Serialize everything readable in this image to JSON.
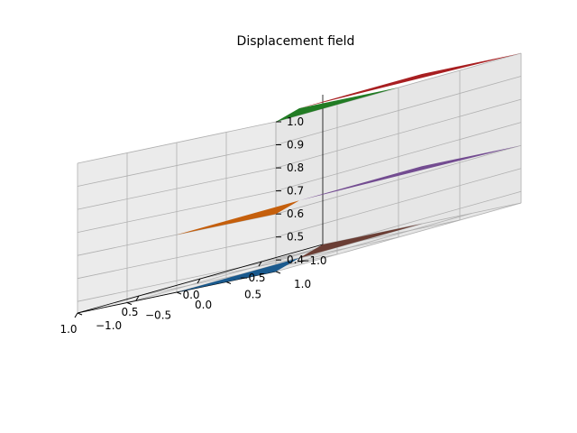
{
  "chart_data": {
    "type": "3d-surface",
    "title": "Displacement field",
    "xlim": [
      -1.0,
      1.0
    ],
    "ylim": [
      -1.0,
      1.0
    ],
    "zlim": [
      0.4,
      1.0
    ],
    "x_ticks": [
      "−1.0",
      "−0.5",
      "0.0",
      "0.5",
      "1.0"
    ],
    "x_tick_values": [
      -1.0,
      -0.5,
      0.0,
      0.5,
      1.0
    ],
    "y_ticks": [
      "−1.0",
      "−0.5",
      "0.0",
      "0.5",
      "1.0"
    ],
    "y_tick_values": [
      -1.0,
      -0.5,
      0.0,
      0.5,
      1.0
    ],
    "z_ticks": [
      "0.4",
      "0.5",
      "0.6",
      "0.7",
      "0.8",
      "0.9",
      "1.0"
    ],
    "z_tick_values": [
      0.4,
      0.5,
      0.6,
      0.7,
      0.8,
      0.9,
      1.0
    ],
    "grid": true,
    "triangles": [
      {
        "color": "#1a5a8e",
        "vertices": [
          [
            0,
            0,
            0.35
          ],
          [
            1,
            1,
            0.35
          ],
          [
            1,
            0,
            0.35
          ]
        ]
      },
      {
        "color": "#6b3e35",
        "vertices": [
          [
            0,
            0,
            0.35
          ],
          [
            -1,
            -1,
            0.35
          ],
          [
            -1,
            0,
            0.35
          ]
        ]
      },
      {
        "color": "#734c91",
        "vertices": [
          [
            0,
            0,
            0.6
          ],
          [
            -1,
            0,
            0.6
          ],
          [
            -1,
            1,
            0.6
          ]
        ]
      },
      {
        "color": "#c55f0c",
        "vertices": [
          [
            0,
            0,
            0.6
          ],
          [
            1,
            0,
            0.6
          ],
          [
            1,
            1,
            0.6
          ]
        ]
      },
      {
        "color": "#a81f21",
        "vertices": [
          [
            0,
            0,
            1.0
          ],
          [
            -1,
            0,
            1.0
          ],
          [
            -1,
            1,
            1.0
          ]
        ]
      },
      {
        "color": "#227c24",
        "vertices": [
          [
            0,
            0,
            1.0
          ],
          [
            1,
            1,
            1.0
          ],
          [
            0,
            1,
            1.0
          ]
        ]
      }
    ]
  }
}
